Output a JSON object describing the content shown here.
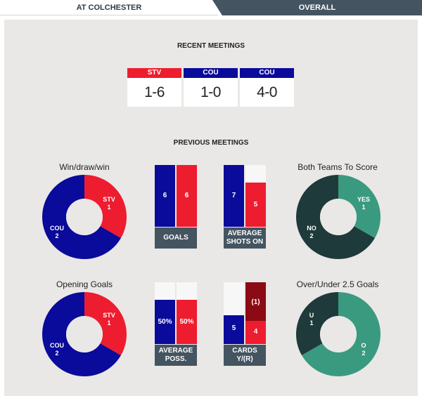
{
  "tabs": {
    "home_label": "AT COLCHESTER",
    "overall_label": "OVERALL"
  },
  "recent": {
    "title": "RECENT MEETINGS",
    "matches": [
      {
        "team": "STV",
        "score": "1-6",
        "color": "#ee1c2f"
      },
      {
        "team": "COU",
        "score": "1-0",
        "color": "#0a0a9b"
      },
      {
        "team": "COU",
        "score": "4-0",
        "color": "#0a0a9b"
      }
    ]
  },
  "previous": {
    "title": "PREVIOUS MEETINGS",
    "wdw": {
      "title": "Win/draw/win",
      "stv_label": "STV",
      "stv_value": "1",
      "cou_label": "COU",
      "cou_value": "2"
    },
    "goals": {
      "cou_value": "6",
      "stv_value": "6",
      "label": "GOALS"
    },
    "shots": {
      "cou_value": "7",
      "stv_value": "5",
      "label_line1": "AVERAGE",
      "label_line2": "SHOTS ON"
    },
    "btts": {
      "title": "Both Teams To Score",
      "yes_label": "YES",
      "yes_value": "1",
      "no_label": "NO",
      "no_value": "2"
    },
    "opening": {
      "title": "Opening Goals",
      "stv_label": "STV",
      "stv_value": "1",
      "cou_label": "COU",
      "cou_value": "2"
    },
    "poss": {
      "cou_value": "50%",
      "stv_value": "50%",
      "label_line1": "AVERAGE",
      "label_line2": "POSS."
    },
    "cards": {
      "cou_value": "5",
      "stv_value": "4",
      "stv_red": "(1)",
      "label_line1": "CARDS",
      "label_line2": "Y/(R)"
    },
    "ou": {
      "title": "Over/Under 2.5 Goals",
      "u_label": "U",
      "u_value": "1",
      "o_label": "O",
      "o_value": "2"
    }
  },
  "colors": {
    "stv": "#ee1c2f",
    "cou": "#0a0a9b",
    "dark_green": "#1e3a3a",
    "mid_green": "#3a9a80",
    "slate": "#445461",
    "red_card": "#8b0a14"
  }
}
